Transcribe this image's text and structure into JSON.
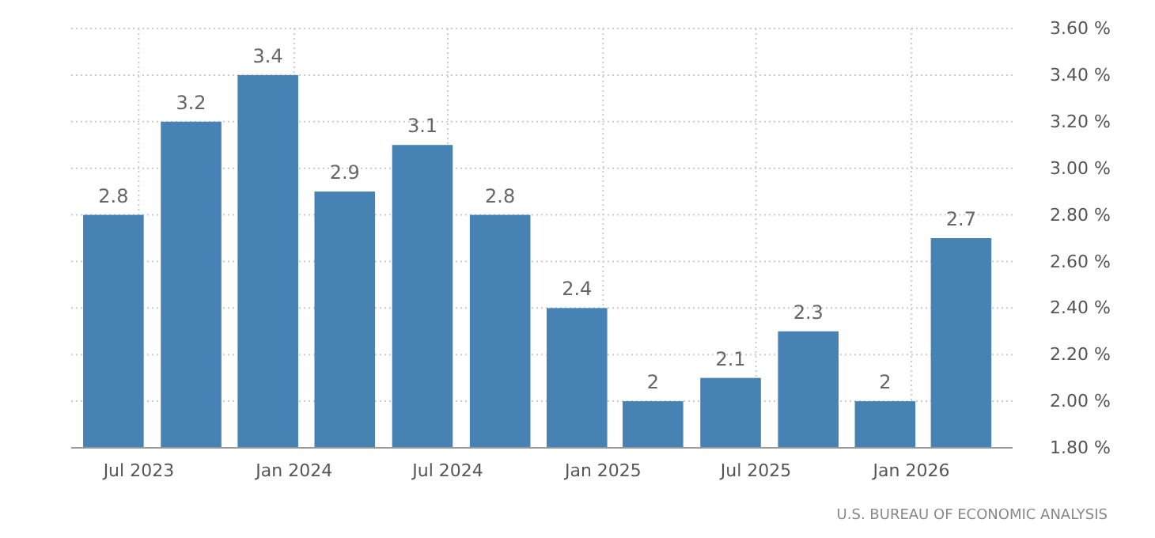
{
  "chart_data": {
    "type": "bar",
    "x": [
      "2023-06",
      "2023-09",
      "2023-12",
      "2024-03",
      "2024-06",
      "2024-09",
      "2024-12",
      "2025-03",
      "2025-06",
      "2025-09",
      "2025-12",
      "2026-03"
    ],
    "values": [
      2.8,
      3.2,
      3.4,
      2.9,
      3.1,
      2.8,
      2.4,
      2,
      2.1,
      2.3,
      2,
      2.7
    ],
    "color": "#4682b4",
    "data_labels": true,
    "xlim": [
      "2023-04-12",
      "2026-05-01"
    ],
    "xticks": [
      {
        "value": "2023-07",
        "label": "Jul 2023"
      },
      {
        "value": "2024-01",
        "label": "Jan 2024"
      },
      {
        "value": "2024-07",
        "label": "Jul 2024"
      },
      {
        "value": "2025-01",
        "label": "Jan 2025"
      },
      {
        "value": "2025-07",
        "label": "Jul 2025"
      },
      {
        "value": "2026-01",
        "label": "Jan 2026"
      }
    ],
    "ylim": [
      1.8,
      3.6
    ],
    "yticks": [
      {
        "value": 1.8,
        "label": "1.80 %"
      },
      {
        "value": 2,
        "label": "2.00 %"
      },
      {
        "value": 2.2,
        "label": "2.20 %"
      },
      {
        "value": 2.4,
        "label": "2.40 %"
      },
      {
        "value": 2.6,
        "label": "2.60 %"
      },
      {
        "value": 2.8,
        "label": "2.80 %"
      },
      {
        "value": 3,
        "label": "3.00 %"
      },
      {
        "value": 3.2,
        "label": "3.20 %"
      },
      {
        "value": 3.4,
        "label": "3.40 %"
      },
      {
        "value": 3.6,
        "label": "3.60 %"
      }
    ],
    "grid": true,
    "annotations": [
      "U.S. BUREAU OF ECONOMIC ANALYSIS"
    ]
  }
}
